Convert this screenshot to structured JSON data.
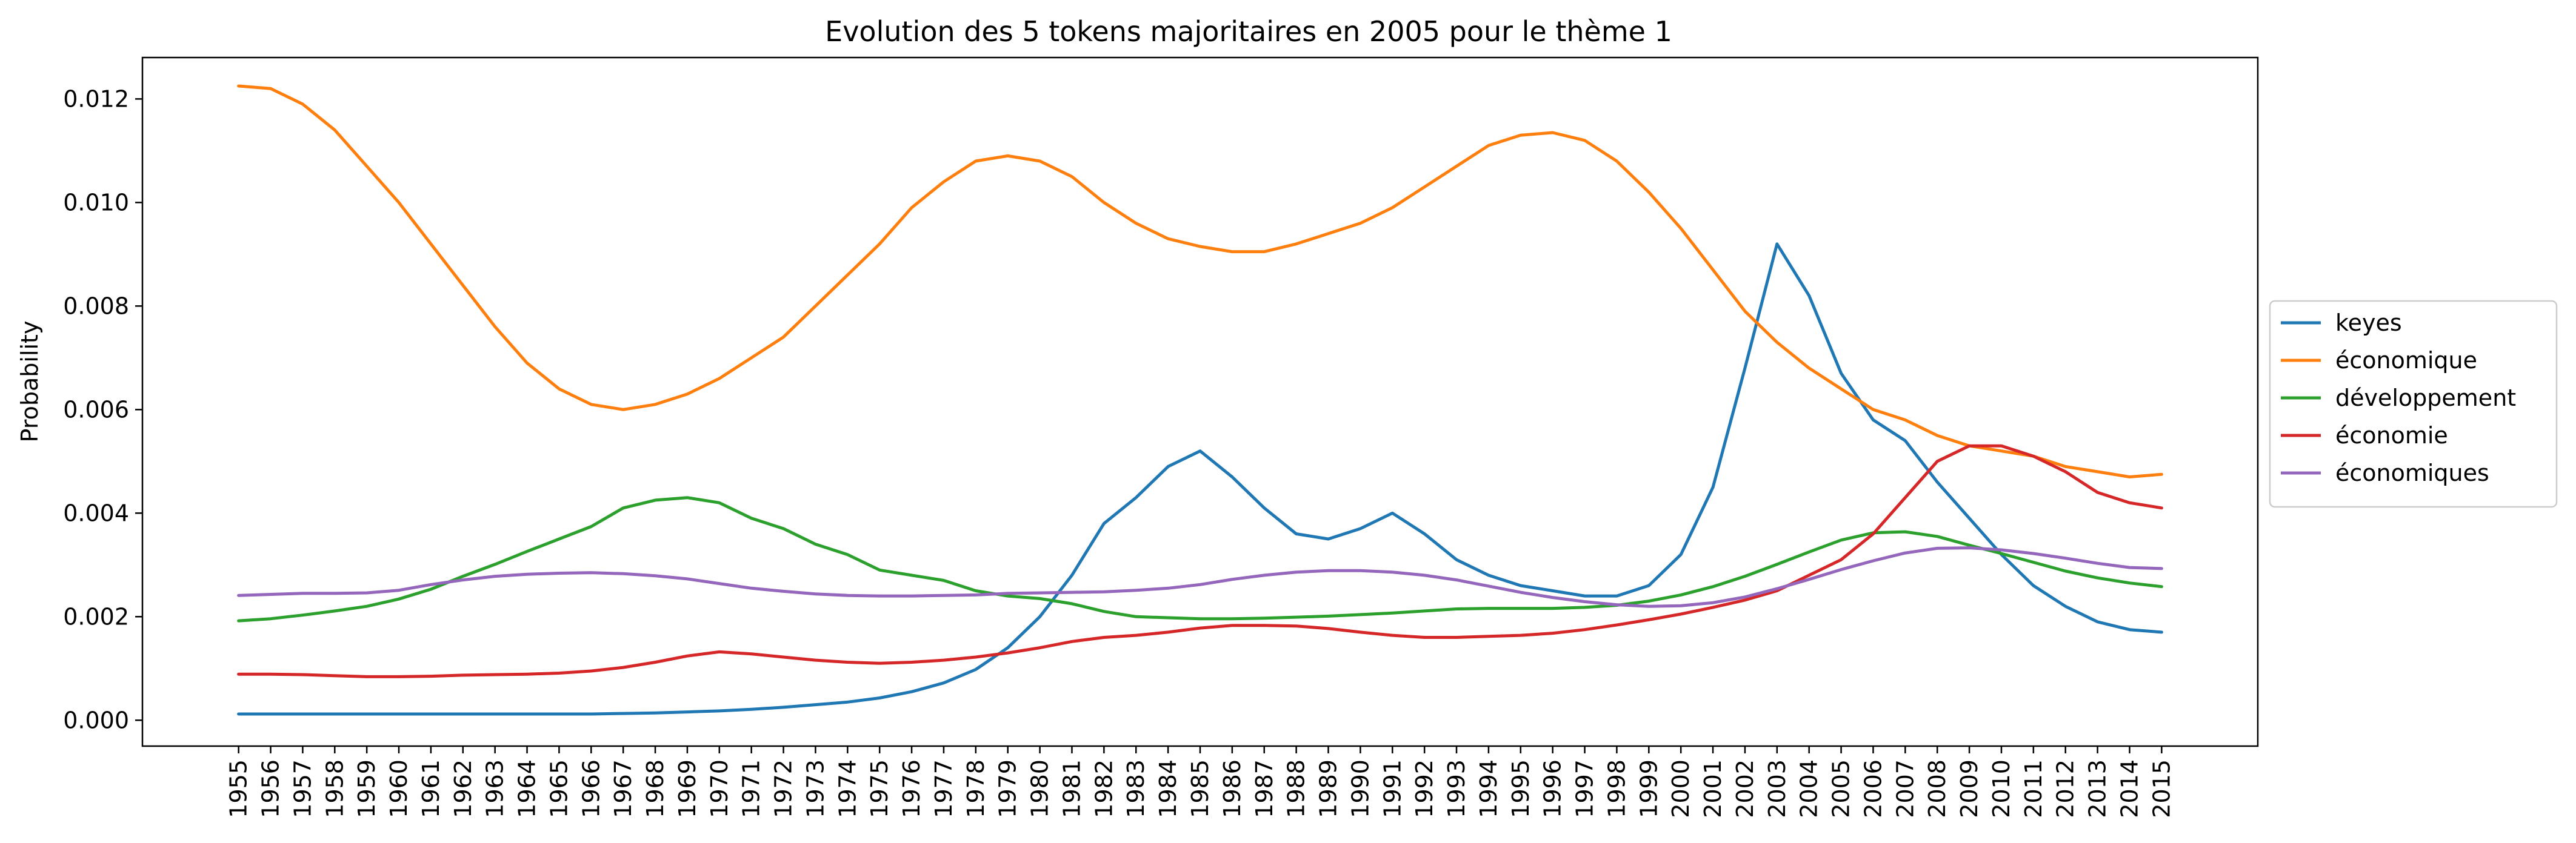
{
  "chart_data": {
    "type": "line",
    "title": "Evolution des 5 tokens majoritaires en 2005 pour le thème 1",
    "xlabel": "",
    "ylabel": "Probability",
    "ylim": [
      -0.0005,
      0.0128
    ],
    "yticks": [
      0.0,
      0.002,
      0.004,
      0.006,
      0.008,
      0.01,
      0.012
    ],
    "ytick_labels": [
      "0.000",
      "0.002",
      "0.004",
      "0.006",
      "0.008",
      "0.010",
      "0.012"
    ],
    "grid": false,
    "legend": "center-right outside",
    "x": [
      1955,
      1956,
      1957,
      1958,
      1959,
      1960,
      1961,
      1962,
      1963,
      1964,
      1965,
      1966,
      1967,
      1968,
      1969,
      1970,
      1971,
      1972,
      1973,
      1974,
      1975,
      1976,
      1977,
      1978,
      1979,
      1980,
      1981,
      1982,
      1983,
      1984,
      1985,
      1986,
      1987,
      1988,
      1989,
      1990,
      1991,
      1992,
      1993,
      1994,
      1995,
      1996,
      1997,
      1998,
      1999,
      2000,
      2001,
      2002,
      2003,
      2004,
      2005,
      2006,
      2007,
      2008,
      2009,
      2010,
      2011,
      2012,
      2013,
      2014,
      2015
    ],
    "series": [
      {
        "name": "keyes",
        "color": "#1f77b4",
        "values": [
          0.00012,
          0.00012,
          0.00012,
          0.00012,
          0.00012,
          0.00012,
          0.00012,
          0.00012,
          0.00012,
          0.00012,
          0.00012,
          0.00012,
          0.00013,
          0.00014,
          0.00016,
          0.00018,
          0.00021,
          0.00025,
          0.0003,
          0.00035,
          0.00043,
          0.00055,
          0.00072,
          0.00098,
          0.0014,
          0.002,
          0.0028,
          0.0038,
          0.0043,
          0.0049,
          0.0052,
          0.0047,
          0.0041,
          0.0036,
          0.0035,
          0.0037,
          0.004,
          0.0036,
          0.0031,
          0.0028,
          0.0026,
          0.0025,
          0.0024,
          0.0024,
          0.0026,
          0.0032,
          0.0045,
          0.0068,
          0.0092,
          0.0082,
          0.0067,
          0.0058,
          0.0054,
          0.0046,
          0.0039,
          0.0032,
          0.0026,
          0.0022,
          0.0019,
          0.00175,
          0.0017
        ]
      },
      {
        "name": "économique",
        "color": "#ff7f0e",
        "values": [
          0.01225,
          0.0122,
          0.0119,
          0.0114,
          0.0107,
          0.01,
          0.0092,
          0.0084,
          0.0076,
          0.0069,
          0.0064,
          0.0061,
          0.006,
          0.0061,
          0.0063,
          0.0066,
          0.007,
          0.0074,
          0.008,
          0.0086,
          0.0092,
          0.0099,
          0.0104,
          0.0108,
          0.0109,
          0.0108,
          0.0105,
          0.01,
          0.0096,
          0.0093,
          0.00915,
          0.00905,
          0.00905,
          0.0092,
          0.0094,
          0.0096,
          0.0099,
          0.0103,
          0.0107,
          0.0111,
          0.0113,
          0.01135,
          0.0112,
          0.0108,
          0.0102,
          0.0095,
          0.0087,
          0.0079,
          0.0073,
          0.0068,
          0.0064,
          0.006,
          0.0058,
          0.0055,
          0.0053,
          0.0052,
          0.0051,
          0.0049,
          0.0048,
          0.0047,
          0.00475
        ]
      },
      {
        "name": "développement",
        "color": "#2ca02c",
        "values": [
          0.00192,
          0.00196,
          0.00203,
          0.00211,
          0.0022,
          0.00234,
          0.00253,
          0.00278,
          0.00301,
          0.00326,
          0.0035,
          0.00374,
          0.0041,
          0.00425,
          0.0043,
          0.0042,
          0.0039,
          0.0037,
          0.0034,
          0.0032,
          0.0029,
          0.0028,
          0.0027,
          0.0025,
          0.0024,
          0.00235,
          0.00225,
          0.0021,
          0.002,
          0.00198,
          0.00196,
          0.00196,
          0.00197,
          0.00199,
          0.00201,
          0.00204,
          0.00207,
          0.00211,
          0.00215,
          0.00216,
          0.00216,
          0.00216,
          0.00218,
          0.00222,
          0.0023,
          0.00242,
          0.00258,
          0.00278,
          0.00301,
          0.00325,
          0.00348,
          0.00362,
          0.00364,
          0.00355,
          0.00338,
          0.00322,
          0.00305,
          0.00288,
          0.00275,
          0.00265,
          0.00258
        ]
      },
      {
        "name": "économie",
        "color": "#d62728",
        "values": [
          0.00089,
          0.00089,
          0.00088,
          0.00086,
          0.00084,
          0.00084,
          0.00085,
          0.00087,
          0.00088,
          0.00089,
          0.00091,
          0.00095,
          0.00102,
          0.00112,
          0.00124,
          0.00132,
          0.00128,
          0.00122,
          0.00116,
          0.00112,
          0.0011,
          0.00112,
          0.00116,
          0.00122,
          0.0013,
          0.0014,
          0.00152,
          0.0016,
          0.00164,
          0.0017,
          0.00178,
          0.00183,
          0.00183,
          0.00182,
          0.00177,
          0.0017,
          0.00164,
          0.0016,
          0.0016,
          0.00162,
          0.00164,
          0.00168,
          0.00175,
          0.00184,
          0.00194,
          0.00205,
          0.00218,
          0.00232,
          0.0025,
          0.0028,
          0.0031,
          0.0036,
          0.0043,
          0.005,
          0.0053,
          0.0053,
          0.0051,
          0.0048,
          0.0044,
          0.0042,
          0.0041
        ]
      },
      {
        "name": "économiques",
        "color": "#9467bd",
        "values": [
          0.00241,
          0.00243,
          0.00245,
          0.00245,
          0.00246,
          0.00251,
          0.00262,
          0.00271,
          0.00278,
          0.00282,
          0.00284,
          0.00285,
          0.00283,
          0.00279,
          0.00273,
          0.00264,
          0.00255,
          0.00249,
          0.00244,
          0.00241,
          0.0024,
          0.0024,
          0.00241,
          0.00242,
          0.00245,
          0.00246,
          0.00247,
          0.00248,
          0.00251,
          0.00255,
          0.00262,
          0.00272,
          0.0028,
          0.00286,
          0.00289,
          0.00289,
          0.00286,
          0.0028,
          0.00271,
          0.00259,
          0.00247,
          0.00237,
          0.00229,
          0.00223,
          0.0022,
          0.00221,
          0.00227,
          0.00238,
          0.00254,
          0.00272,
          0.00291,
          0.00308,
          0.00323,
          0.00332,
          0.00333,
          0.00329,
          0.00322,
          0.00313,
          0.00303,
          0.00295,
          0.00293
        ]
      }
    ]
  }
}
